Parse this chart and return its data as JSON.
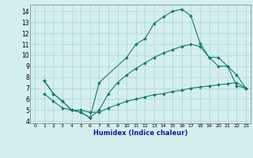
{
  "xlabel": "Humidex (Indice chaleur)",
  "bg_color": "#d4eeee",
  "grid_color": "#b0d8d8",
  "line_color": "#1a7a6e",
  "xlim": [
    -0.5,
    23.5
  ],
  "ylim": [
    3.8,
    14.6
  ],
  "yticks": [
    4,
    5,
    6,
    7,
    8,
    9,
    10,
    11,
    12,
    13,
    14
  ],
  "xticks": [
    0,
    1,
    2,
    3,
    4,
    5,
    6,
    7,
    8,
    9,
    10,
    11,
    12,
    13,
    14,
    15,
    16,
    17,
    18,
    19,
    20,
    21,
    22,
    23
  ],
  "series": [
    {
      "x": [
        1,
        2,
        3,
        4,
        5,
        6,
        7,
        10,
        11,
        12,
        13,
        14,
        15,
        16,
        17,
        18,
        19,
        20,
        21,
        22,
        23
      ],
      "y": [
        7.7,
        6.5,
        5.8,
        5.0,
        4.8,
        4.3,
        7.5,
        9.8,
        11.0,
        11.5,
        12.9,
        13.5,
        14.0,
        14.2,
        13.6,
        11.1,
        9.8,
        9.0,
        9.0,
        7.2,
        7.0
      ]
    },
    {
      "x": [
        1,
        2,
        3,
        4,
        5,
        6,
        7,
        8,
        9,
        10,
        11,
        12,
        13,
        14,
        15,
        16,
        17,
        18,
        19,
        20,
        21,
        22,
        23
      ],
      "y": [
        7.7,
        6.5,
        5.8,
        5.0,
        4.8,
        4.3,
        5.0,
        6.5,
        7.5,
        8.2,
        8.8,
        9.3,
        9.8,
        10.2,
        10.5,
        10.8,
        11.0,
        10.8,
        9.8,
        9.8,
        9.0,
        8.2,
        7.0
      ]
    },
    {
      "x": [
        1,
        2,
        3,
        4,
        5,
        6,
        7,
        8,
        9,
        10,
        11,
        12,
        13,
        14,
        15,
        16,
        17,
        18,
        19,
        20,
        21,
        22,
        23
      ],
      "y": [
        6.5,
        5.8,
        5.2,
        5.0,
        5.0,
        4.8,
        4.8,
        5.2,
        5.5,
        5.8,
        6.0,
        6.2,
        6.4,
        6.5,
        6.7,
        6.8,
        7.0,
        7.1,
        7.2,
        7.3,
        7.4,
        7.5,
        7.0
      ]
    }
  ]
}
